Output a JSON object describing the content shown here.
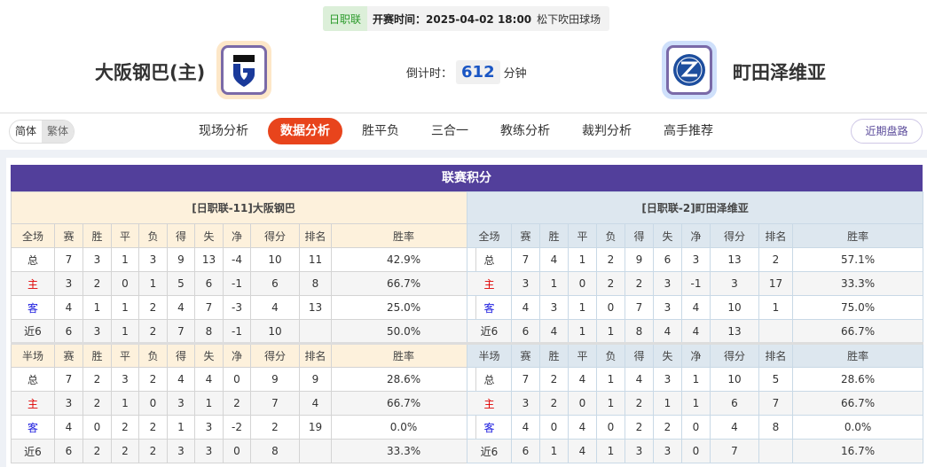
{
  "header": {
    "league": "日职联",
    "time": "开赛时间：2025-04-02 18:00",
    "venue": "松下吹田球场",
    "home_team": "大阪钢巴(主)",
    "away_team": "町田泽维亚",
    "countdown_label": "倒计时：",
    "countdown_value": "612",
    "countdown_unit": "分钟"
  },
  "nav": {
    "lang": [
      "简体",
      "繁体"
    ],
    "tabs": [
      "现场分析",
      "数据分析",
      "胜平负",
      "三合一",
      "教练分析",
      "裁判分析",
      "高手推荐"
    ],
    "active_tab": "数据分析",
    "recent": "近期盘路"
  },
  "colors": {
    "accent": "#e8441c",
    "title_bar": "#523f9b",
    "home_row_label": "#e00000",
    "away_row_label": "#1a1adf"
  },
  "standings": {
    "title": "联赛积分",
    "columns": [
      "赛",
      "胜",
      "平",
      "负",
      "得",
      "失",
      "净",
      "得分",
      "排名",
      "胜率"
    ],
    "tables": [
      {
        "team_header": "[日职联-11]大阪钢巴",
        "sections": [
          {
            "label": "全场",
            "rows": [
              [
                "总",
                "7",
                "3",
                "1",
                "3",
                "9",
                "13",
                "-4",
                "10",
                "11",
                "42.9%"
              ],
              [
                "主",
                "3",
                "2",
                "0",
                "1",
                "5",
                "6",
                "-1",
                "6",
                "8",
                "66.7%"
              ],
              [
                "客",
                "4",
                "1",
                "1",
                "2",
                "4",
                "7",
                "-3",
                "4",
                "13",
                "25.0%"
              ],
              [
                "近6",
                "6",
                "3",
                "1",
                "2",
                "7",
                "8",
                "-1",
                "10",
                "",
                "50.0%"
              ]
            ]
          },
          {
            "label": "半场",
            "rows": [
              [
                "总",
                "7",
                "2",
                "3",
                "2",
                "4",
                "4",
                "0",
                "9",
                "9",
                "28.6%"
              ],
              [
                "主",
                "3",
                "2",
                "1",
                "0",
                "3",
                "1",
                "2",
                "7",
                "4",
                "66.7%"
              ],
              [
                "客",
                "4",
                "0",
                "2",
                "2",
                "1",
                "3",
                "-2",
                "2",
                "19",
                "0.0%"
              ],
              [
                "近6",
                "6",
                "2",
                "2",
                "2",
                "3",
                "3",
                "0",
                "8",
                "",
                "33.3%"
              ]
            ]
          }
        ]
      },
      {
        "team_header": "[日职联-2]町田泽维亚",
        "sections": [
          {
            "label": "全场",
            "rows": [
              [
                "总",
                "7",
                "4",
                "1",
                "2",
                "9",
                "6",
                "3",
                "13",
                "2",
                "57.1%"
              ],
              [
                "主",
                "3",
                "1",
                "0",
                "2",
                "2",
                "3",
                "-1",
                "3",
                "17",
                "33.3%"
              ],
              [
                "客",
                "4",
                "3",
                "1",
                "0",
                "7",
                "3",
                "4",
                "10",
                "1",
                "75.0%"
              ],
              [
                "近6",
                "6",
                "4",
                "1",
                "1",
                "8",
                "4",
                "4",
                "13",
                "",
                "66.7%"
              ]
            ]
          },
          {
            "label": "半场",
            "rows": [
              [
                "总",
                "7",
                "2",
                "4",
                "1",
                "4",
                "3",
                "1",
                "10",
                "5",
                "28.6%"
              ],
              [
                "主",
                "3",
                "2",
                "0",
                "1",
                "2",
                "1",
                "1",
                "6",
                "7",
                "66.7%"
              ],
              [
                "客",
                "4",
                "0",
                "4",
                "0",
                "2",
                "2",
                "0",
                "4",
                "8",
                "0.0%"
              ],
              [
                "近6",
                "6",
                "1",
                "4",
                "1",
                "3",
                "3",
                "0",
                "7",
                "",
                "16.7%"
              ]
            ]
          }
        ]
      }
    ]
  }
}
